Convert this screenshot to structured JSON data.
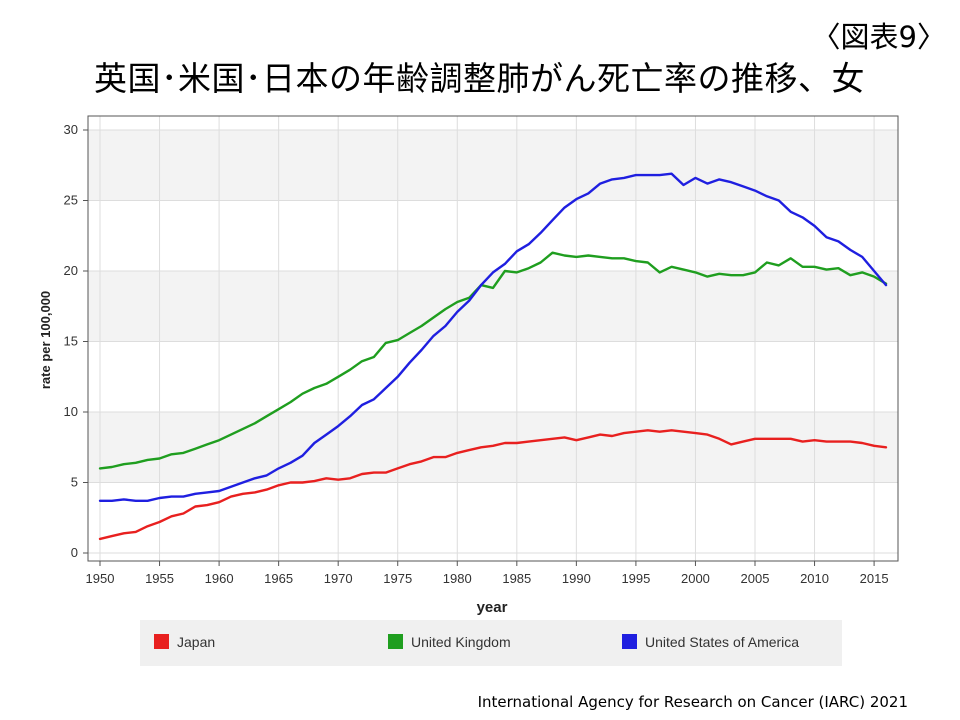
{
  "header": {
    "figure_label": "〈図表9〉",
    "title": "英国･米国･日本の年齢調整肺がん死亡率の推移、女"
  },
  "footer": {
    "source": "International Agency for Research on Cancer (IARC) 2021"
  },
  "chart_data": {
    "type": "line",
    "title": "英国･米国･日本の年齢調整肺がん死亡率の推移、女",
    "xlabel": "year",
    "ylabel": "rate per 100,000",
    "xlim": [
      1950,
      2016
    ],
    "ylim": [
      0,
      30
    ],
    "x_ticks": [
      1950,
      1955,
      1960,
      1965,
      1970,
      1975,
      1980,
      1985,
      1990,
      1995,
      2000,
      2005,
      2010,
      2015
    ],
    "y_ticks": [
      0,
      5,
      10,
      15,
      20,
      25,
      30
    ],
    "grid": true,
    "legend_position": "bottom",
    "x": [
      1950,
      1951,
      1952,
      1953,
      1954,
      1955,
      1956,
      1957,
      1958,
      1959,
      1960,
      1961,
      1962,
      1963,
      1964,
      1965,
      1966,
      1967,
      1968,
      1969,
      1970,
      1971,
      1972,
      1973,
      1974,
      1975,
      1976,
      1977,
      1978,
      1979,
      1980,
      1981,
      1982,
      1983,
      1984,
      1985,
      1986,
      1987,
      1988,
      1989,
      1990,
      1991,
      1992,
      1993,
      1994,
      1995,
      1996,
      1997,
      1998,
      1999,
      2000,
      2001,
      2002,
      2003,
      2004,
      2005,
      2006,
      2007,
      2008,
      2009,
      2010,
      2011,
      2012,
      2013,
      2014,
      2015,
      2016
    ],
    "series": [
      {
        "name": "Japan",
        "color": "#e8201f",
        "values": [
          1.0,
          1.2,
          1.4,
          1.5,
          1.9,
          2.2,
          2.6,
          2.8,
          3.3,
          3.4,
          3.6,
          4.0,
          4.2,
          4.3,
          4.5,
          4.8,
          5.0,
          5.0,
          5.1,
          5.3,
          5.2,
          5.3,
          5.6,
          5.7,
          5.7,
          6.0,
          6.3,
          6.5,
          6.8,
          6.8,
          7.1,
          7.3,
          7.5,
          7.6,
          7.8,
          7.8,
          7.9,
          8.0,
          8.1,
          8.2,
          8.0,
          8.2,
          8.4,
          8.3,
          8.5,
          8.6,
          8.7,
          8.6,
          8.7,
          8.6,
          8.5,
          8.4,
          8.1,
          7.7,
          7.9,
          8.1,
          8.1,
          8.1,
          8.1,
          7.9,
          8.0,
          7.9,
          7.9,
          7.9,
          7.8,
          7.6,
          7.5
        ]
      },
      {
        "name": "United Kingdom",
        "color": "#1f9e1f",
        "values": [
          6.0,
          6.1,
          6.3,
          6.4,
          6.6,
          6.7,
          7.0,
          7.1,
          7.4,
          7.7,
          8.0,
          8.4,
          8.8,
          9.2,
          9.7,
          10.2,
          10.7,
          11.3,
          11.7,
          12.0,
          12.5,
          13.0,
          13.6,
          13.9,
          14.9,
          15.1,
          15.6,
          16.1,
          16.7,
          17.3,
          17.8,
          18.1,
          19.0,
          18.8,
          20.0,
          19.9,
          20.2,
          20.6,
          21.3,
          21.1,
          21.0,
          21.1,
          21.0,
          20.9,
          20.9,
          20.7,
          20.6,
          19.9,
          20.3,
          20.1,
          19.9,
          19.6,
          19.8,
          19.7,
          19.7,
          19.9,
          20.6,
          20.4,
          20.9,
          20.3,
          20.3,
          20.1,
          20.2,
          19.7,
          19.9,
          19.6,
          19.1
        ]
      },
      {
        "name": "United States of America",
        "color": "#1f1fe0",
        "values": [
          3.7,
          3.7,
          3.8,
          3.7,
          3.7,
          3.9,
          4.0,
          4.0,
          4.2,
          4.3,
          4.4,
          4.7,
          5.0,
          5.3,
          5.5,
          6.0,
          6.4,
          6.9,
          7.8,
          8.4,
          9.0,
          9.7,
          10.5,
          10.9,
          11.7,
          12.5,
          13.5,
          14.4,
          15.4,
          16.1,
          17.1,
          17.9,
          19.0,
          19.9,
          20.5,
          21.4,
          21.9,
          22.7,
          23.6,
          24.5,
          25.1,
          25.5,
          26.2,
          26.5,
          26.6,
          26.8,
          26.8,
          26.8,
          26.9,
          26.1,
          26.6,
          26.2,
          26.5,
          26.3,
          26.0,
          25.7,
          25.3,
          25.0,
          24.2,
          23.8,
          23.2,
          22.4,
          22.1,
          21.5,
          21.0,
          20.0,
          19.0
        ]
      }
    ]
  }
}
